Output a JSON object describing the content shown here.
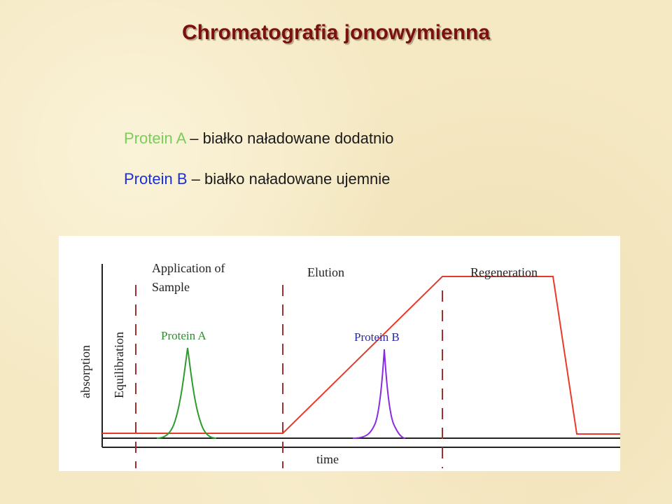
{
  "title": "Chromatografia jonowymienna",
  "colors": {
    "title": "#7a1010",
    "protein_a": "#7ccc5c",
    "protein_b": "#1a2fd6",
    "axis": "#222222",
    "phase_divider": "#a03030",
    "gradient_line": "#e83a2a",
    "peak_a": "#2e9a2e",
    "peak_b": "#8a2be2",
    "peak_a_label": "#2e8b2e",
    "peak_b_label": "#2a2aa0"
  },
  "legend": [
    {
      "name": "Protein A",
      "separator": "–",
      "description": "białko naładowane dodatnio"
    },
    {
      "name": "Protein B",
      "separator": "–",
      "description": "białko naładowane ujemnie"
    }
  ],
  "diagram": {
    "y_axis_label": "absorption",
    "x_axis_label": "time",
    "phases": {
      "equilibration": "Equilibration",
      "application_line1": "Application of",
      "application_line2": "Sample",
      "elution": "Elution",
      "regeneration": "Regeneration"
    },
    "peaks": {
      "protein_a": "Protein A",
      "protein_b": "Protein B"
    }
  }
}
